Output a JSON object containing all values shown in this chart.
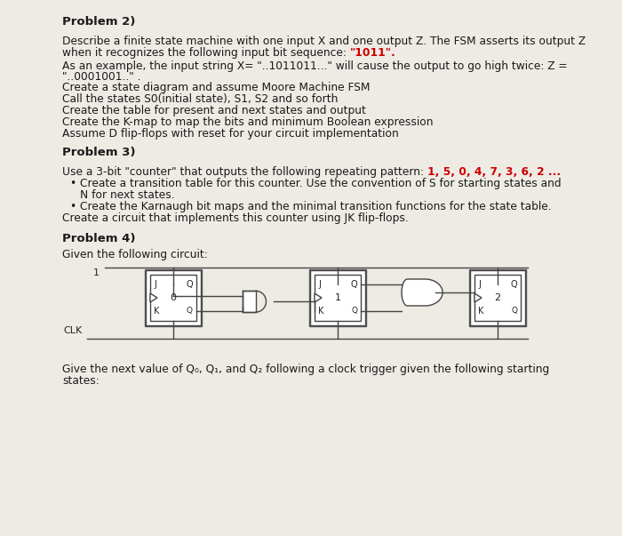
{
  "bg_color": "#eeebe5",
  "text_color": "#1a1a1a",
  "red_color": "#cc0000",
  "problem2_title": "Problem 2)",
  "problem2_line1": "Describe a finite state machine with one input X and one output Z. The FSM asserts its output Z",
  "problem2_line2_normal": "when it recognizes the following input bit sequence: ",
  "problem2_line2_red": "\"1011\".",
  "problem2_line3": "As an example, the input string X= \"..1011011...\" will cause the output to go high twice: Z =",
  "problem2_line4": "\"..0001001..\" .",
  "problem2_bullets": [
    "Create a state diagram and assume Moore Machine FSM",
    "Call the states S0(initial state), S1, S2 and so forth",
    "Create the table for present and next states and output",
    "Create the K-map to map the bits and minimum Boolean expression",
    "Assume D flip-flops with reset for your circuit implementation"
  ],
  "problem3_title": "Problem 3)",
  "problem3_line1_normal": "Use a 3-bit \"counter\" that outputs the following repeating pattern: ",
  "problem3_line1_red": "1, 5, 0, 4, 7, 3, 6, 2 ...",
  "problem3_bullet1_normal": "Create a transition table for this counter. Use the convention of S for starting states and",
  "problem3_bullet1_cont": "N for next states.",
  "problem3_bullet2": "Create the Karnaugh bit maps and the minimal transition functions for the state table.",
  "problem3_last": "Create a circuit that implements this counter using JK flip-flops.",
  "problem4_title": "Problem 4)",
  "problem4_line1": "Given the following circuit:",
  "problem4_last1": "Give the next value of Q₀, Q₁, and Q₂ following a clock trigger given the following starting",
  "problem4_last2": "states:"
}
